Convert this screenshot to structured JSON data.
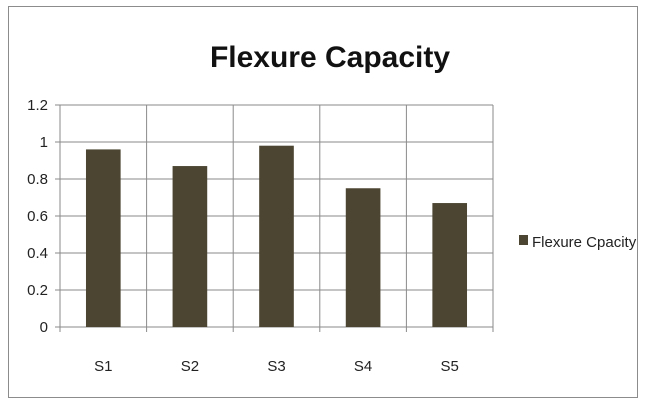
{
  "chart_data": {
    "type": "bar",
    "title": "Flexure Capacity",
    "categories": [
      "S1",
      "S2",
      "S3",
      "S4",
      "S5"
    ],
    "series": [
      {
        "name": "Flexure Cpacity",
        "values": [
          0.96,
          0.87,
          0.98,
          0.75,
          0.67
        ],
        "color": "#4b4532"
      }
    ],
    "ylim": [
      0,
      1.2
    ],
    "yticks": [
      0,
      0.2,
      0.4,
      0.6,
      0.8,
      1,
      1.2
    ],
    "grid": true,
    "legend_position": "right"
  }
}
